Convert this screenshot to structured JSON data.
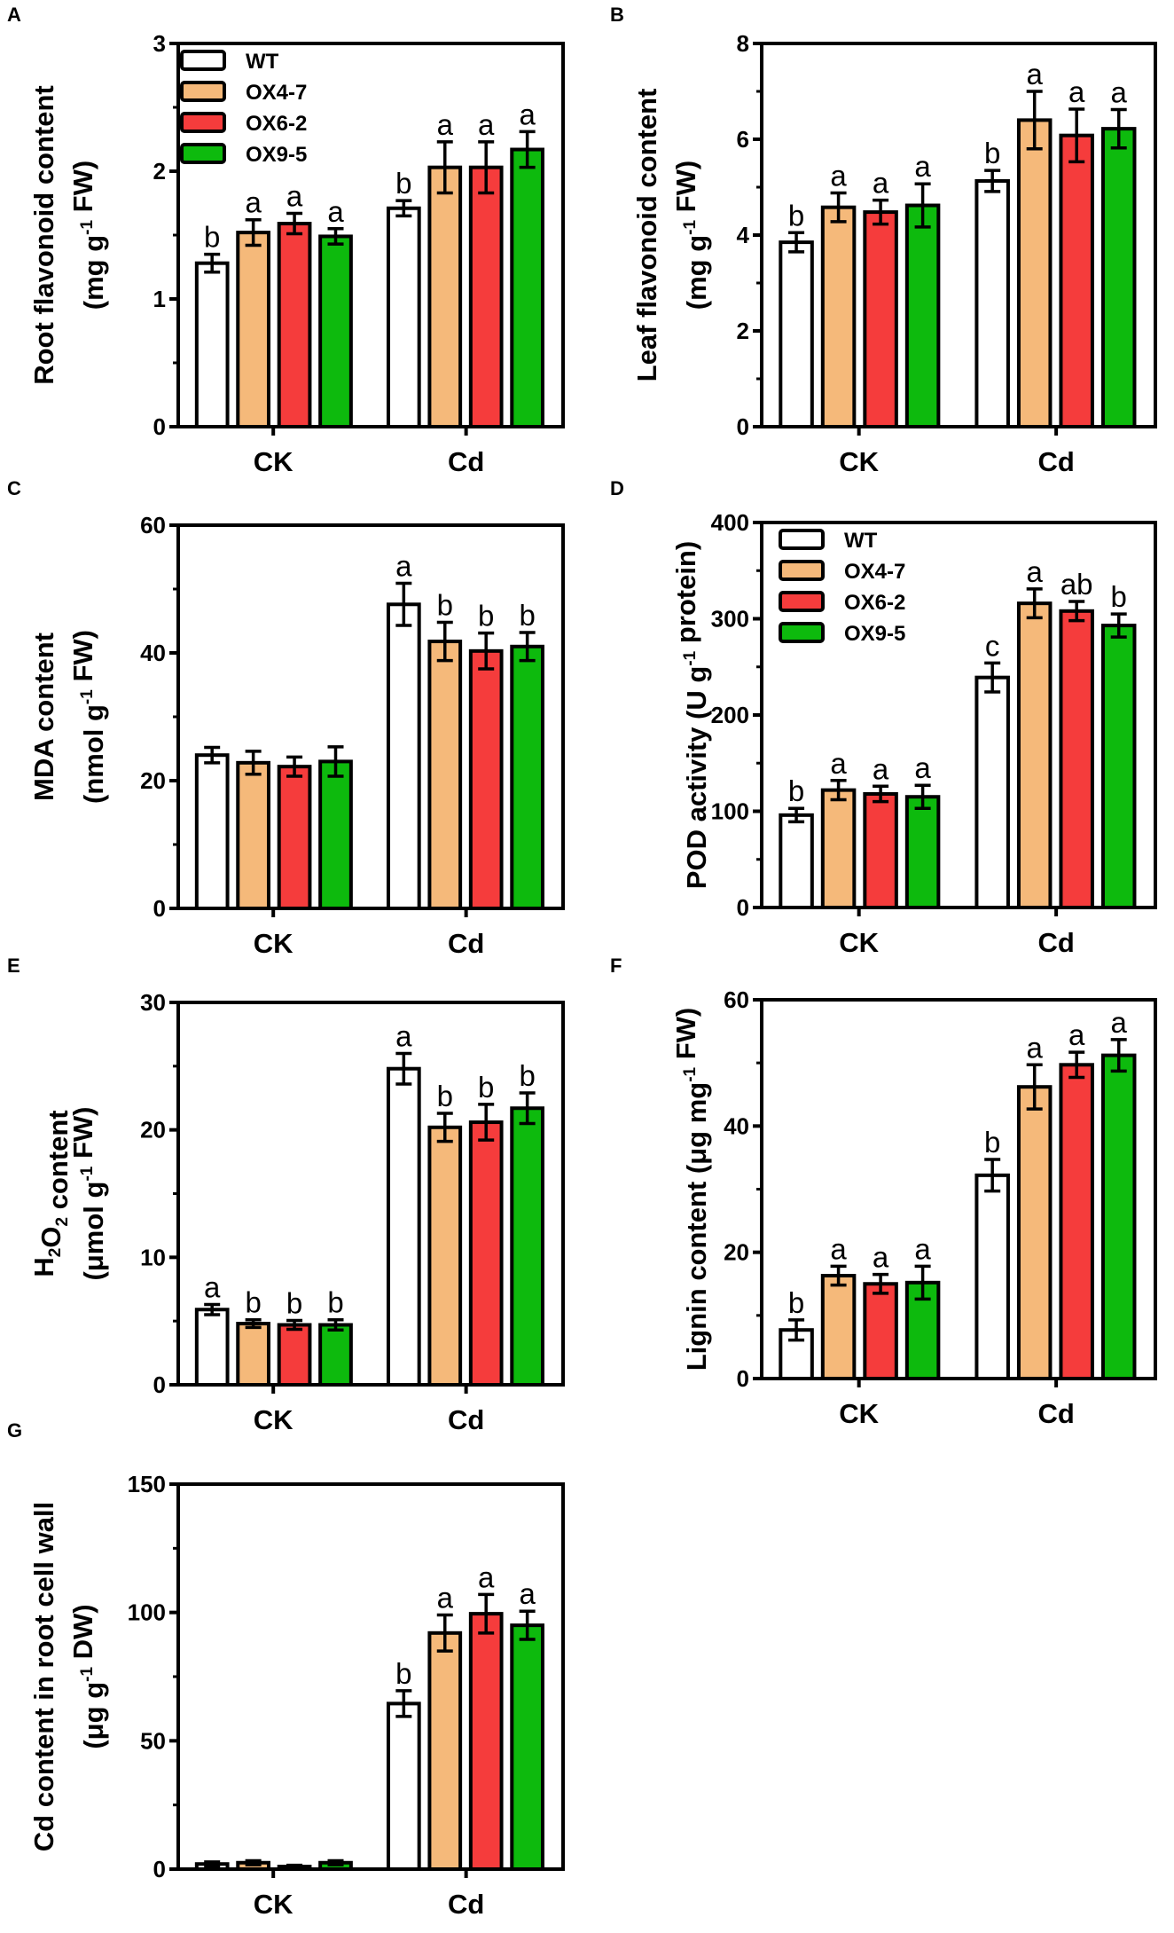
{
  "colors": {
    "WT": "#ffffff",
    "OX4-7": "#f5b97a",
    "OX6-2": "#f53c3c",
    "OX9-5": "#0dba0d",
    "axis": "#000000"
  },
  "chart_data": [
    {
      "panel": "A",
      "type": "bar",
      "categories": [
        "CK",
        "Cd"
      ],
      "ylim": [
        0,
        3
      ],
      "yticks": [
        0,
        1,
        2,
        3
      ],
      "ylabel": [
        [
          {
            "t": "Root flavonoid content"
          }
        ],
        [
          {
            "t": "(mg g"
          },
          {
            "t": "-1",
            "sup": true
          },
          {
            "t": " FW)"
          }
        ]
      ],
      "legend": true,
      "series": [
        {
          "name": "WT",
          "values": [
            1.28,
            1.71
          ],
          "errors": [
            0.07,
            0.06
          ],
          "letters": [
            "b",
            "b"
          ]
        },
        {
          "name": "OX4-7",
          "values": [
            1.52,
            2.03
          ],
          "errors": [
            0.1,
            0.2
          ],
          "letters": [
            "a",
            "a"
          ]
        },
        {
          "name": "OX6-2",
          "values": [
            1.59,
            2.03
          ],
          "errors": [
            0.08,
            0.2
          ],
          "letters": [
            "a",
            "a"
          ]
        },
        {
          "name": "OX9-5",
          "values": [
            1.49,
            2.17
          ],
          "errors": [
            0.06,
            0.14
          ],
          "letters": [
            "a",
            "a"
          ]
        }
      ]
    },
    {
      "panel": "B",
      "type": "bar",
      "categories": [
        "CK",
        "Cd"
      ],
      "ylim": [
        0,
        8
      ],
      "yticks": [
        0,
        2,
        4,
        6,
        8
      ],
      "ylabel": [
        [
          {
            "t": "Leaf flavonoid content"
          }
        ],
        [
          {
            "t": "(mg g"
          },
          {
            "t": "-1",
            "sup": true
          },
          {
            "t": " FW)"
          }
        ]
      ],
      "legend": false,
      "series": [
        {
          "name": "WT",
          "values": [
            3.85,
            5.13
          ],
          "errors": [
            0.2,
            0.22
          ],
          "letters": [
            "b",
            "b"
          ]
        },
        {
          "name": "OX4-7",
          "values": [
            4.58,
            6.4
          ],
          "errors": [
            0.3,
            0.6
          ],
          "letters": [
            "a",
            "a"
          ]
        },
        {
          "name": "OX6-2",
          "values": [
            4.48,
            6.08
          ],
          "errors": [
            0.25,
            0.55
          ],
          "letters": [
            "a",
            "a"
          ]
        },
        {
          "name": "OX9-5",
          "values": [
            4.62,
            6.22
          ],
          "errors": [
            0.45,
            0.4
          ],
          "letters": [
            "a",
            "a"
          ]
        }
      ]
    },
    {
      "panel": "C",
      "type": "bar",
      "categories": [
        "CK",
        "Cd"
      ],
      "ylim": [
        0,
        60
      ],
      "yticks": [
        0,
        20,
        40,
        60
      ],
      "ylabel": [
        [
          {
            "t": "MDA content"
          }
        ],
        [
          {
            "t": "(nmol g"
          },
          {
            "t": "-1",
            "sup": true
          },
          {
            "t": " FW)"
          }
        ]
      ],
      "legend": false,
      "series": [
        {
          "name": "WT",
          "values": [
            24.0,
            47.6
          ],
          "errors": [
            1.2,
            3.3
          ],
          "letters": [
            "",
            "a"
          ]
        },
        {
          "name": "OX4-7",
          "values": [
            22.8,
            41.8
          ],
          "errors": [
            1.8,
            3.0
          ],
          "letters": [
            "",
            "b"
          ]
        },
        {
          "name": "OX6-2",
          "values": [
            22.2,
            40.3
          ],
          "errors": [
            1.5,
            2.8
          ],
          "letters": [
            "",
            "b"
          ]
        },
        {
          "name": "OX9-5",
          "values": [
            23.0,
            41.0
          ],
          "errors": [
            2.3,
            2.2
          ],
          "letters": [
            "",
            "b"
          ]
        }
      ]
    },
    {
      "panel": "D",
      "type": "bar",
      "categories": [
        "CK",
        "Cd"
      ],
      "ylim": [
        0,
        400
      ],
      "yticks": [
        0,
        100,
        200,
        300,
        400
      ],
      "ylabel": [
        [
          {
            "t": "POD activity (U g"
          },
          {
            "t": "-1",
            "sup": true
          },
          {
            "t": " protein)"
          }
        ]
      ],
      "legend": true,
      "series": [
        {
          "name": "WT",
          "values": [
            96,
            239
          ],
          "errors": [
            7,
            15
          ],
          "letters": [
            "b",
            "c"
          ]
        },
        {
          "name": "OX4-7",
          "values": [
            122,
            316
          ],
          "errors": [
            10,
            15
          ],
          "letters": [
            "a",
            "a"
          ]
        },
        {
          "name": "OX6-2",
          "values": [
            118,
            308
          ],
          "errors": [
            8,
            10
          ],
          "letters": [
            "a",
            "ab"
          ]
        },
        {
          "name": "OX9-5",
          "values": [
            115,
            293
          ],
          "errors": [
            12,
            12
          ],
          "letters": [
            "a",
            "b"
          ]
        }
      ]
    },
    {
      "panel": "E",
      "type": "bar",
      "categories": [
        "CK",
        "Cd"
      ],
      "ylim": [
        0,
        30
      ],
      "yticks": [
        0,
        10,
        20,
        30
      ],
      "ylabel": [
        [
          {
            "t": "H"
          },
          {
            "t": "2",
            "sub": true
          },
          {
            "t": "O"
          },
          {
            "t": "2",
            "sub": true
          },
          {
            "t": " content"
          }
        ],
        [
          {
            "t": "(μmol g"
          },
          {
            "t": "-1",
            "sup": true
          },
          {
            "t": " FW)"
          }
        ]
      ],
      "legend": false,
      "series": [
        {
          "name": "WT",
          "values": [
            5.9,
            24.8
          ],
          "errors": [
            0.4,
            1.2
          ],
          "letters": [
            "a",
            "a"
          ]
        },
        {
          "name": "OX4-7",
          "values": [
            4.8,
            20.2
          ],
          "errors": [
            0.3,
            1.1
          ],
          "letters": [
            "b",
            "b"
          ]
        },
        {
          "name": "OX6-2",
          "values": [
            4.7,
            20.6
          ],
          "errors": [
            0.35,
            1.4
          ],
          "letters": [
            "b",
            "b"
          ]
        },
        {
          "name": "OX9-5",
          "values": [
            4.7,
            21.7
          ],
          "errors": [
            0.4,
            1.2
          ],
          "letters": [
            "b",
            "b"
          ]
        }
      ]
    },
    {
      "panel": "F",
      "type": "bar",
      "categories": [
        "CK",
        "Cd"
      ],
      "ylim": [
        0,
        60
      ],
      "yticks": [
        0,
        20,
        40,
        60
      ],
      "ylabel": [
        [
          {
            "t": "Lignin content (μg mg"
          },
          {
            "t": "-1",
            "sup": true
          },
          {
            "t": " FW)"
          }
        ]
      ],
      "legend": false,
      "series": [
        {
          "name": "WT",
          "values": [
            7.7,
            32.2
          ],
          "errors": [
            1.6,
            2.5
          ],
          "letters": [
            "b",
            "b"
          ]
        },
        {
          "name": "OX4-7",
          "values": [
            16.3,
            46.2
          ],
          "errors": [
            1.5,
            3.5
          ],
          "letters": [
            "a",
            "a"
          ]
        },
        {
          "name": "OX6-2",
          "values": [
            15.0,
            49.7
          ],
          "errors": [
            1.5,
            2.0
          ],
          "letters": [
            "a",
            "a"
          ]
        },
        {
          "name": "OX9-5",
          "values": [
            15.2,
            51.2
          ],
          "errors": [
            2.6,
            2.5
          ],
          "letters": [
            "a",
            "a"
          ]
        }
      ]
    },
    {
      "panel": "G",
      "type": "bar",
      "categories": [
        "CK",
        "Cd"
      ],
      "ylim": [
        0,
        150
      ],
      "yticks": [
        0,
        50,
        100,
        150
      ],
      "ylabel": [
        [
          {
            "t": "Cd content in root cell wall"
          }
        ],
        [
          {
            "t": "(μg g"
          },
          {
            "t": "-1",
            "sup": true
          },
          {
            "t": " DW)"
          }
        ]
      ],
      "legend": false,
      "series": [
        {
          "name": "WT",
          "values": [
            2.0,
            64.5
          ],
          "errors": [
            0.8,
            5.0
          ],
          "letters": [
            "",
            "b"
          ]
        },
        {
          "name": "OX4-7",
          "values": [
            2.5,
            92.0
          ],
          "errors": [
            0.8,
            7.0
          ],
          "letters": [
            "",
            "a"
          ]
        },
        {
          "name": "OX6-2",
          "values": [
            1.0,
            99.5
          ],
          "errors": [
            0.5,
            7.5
          ],
          "letters": [
            "",
            "a"
          ]
        },
        {
          "name": "OX9-5",
          "values": [
            2.5,
            95.0
          ],
          "errors": [
            0.8,
            5.5
          ],
          "letters": [
            "",
            "a"
          ]
        }
      ]
    }
  ]
}
